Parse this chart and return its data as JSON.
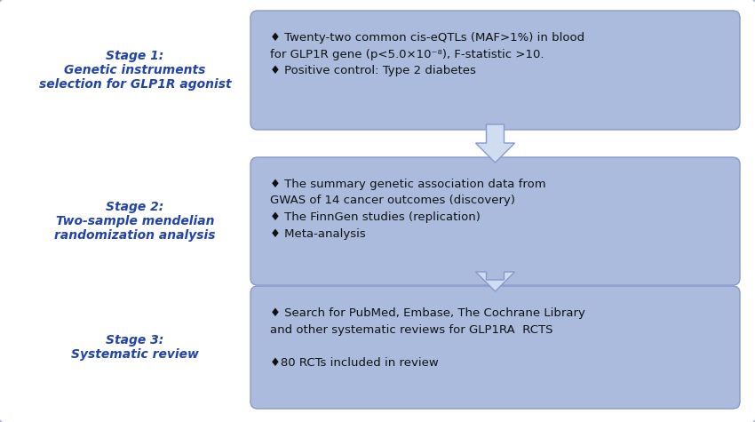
{
  "bg_color": "#ffffff",
  "outer_border_color": "#b0b8cc",
  "box_fill_color": "#aabbdd",
  "box_edge_color": "#8899cc",
  "arrow_fill_color": "#d0ddf0",
  "arrow_edge_color": "#8899cc",
  "left_label_color": "#2244aa",
  "text_color": "#111111",
  "figsize": [
    8.5,
    4.75
  ],
  "dpi": 100,
  "stages": [
    {
      "label_lines": [
        "Stage 1:",
        "Genetic instruments",
        "selection for GLP1R agonist"
      ],
      "box_text": "♦ Twenty-two common cis-eQTLs (MAF>1%) in blood\nfor GLP1R gene (p<5.0×10⁻⁸), F-statistic >10.\n♦ Positive control: Type 2 diabetes"
    },
    {
      "label_lines": [
        "Stage 2:",
        "Two-sample mendelian",
        "randomization analysis"
      ],
      "box_text": "♦ The summary genetic association data from\nGWAS of 14 cancer outcomes (discovery)\n♦ The FinnGen studies (replication)\n♦ Meta-analysis"
    },
    {
      "label_lines": [
        "Stage 3:",
        "Systematic review"
      ],
      "box_text": "♦ Search for PubMed, Embase, The Cochrane Library\nand other systematic reviews for GLP1RA  RCTS\n\n♦80 RCTs included in review"
    }
  ]
}
